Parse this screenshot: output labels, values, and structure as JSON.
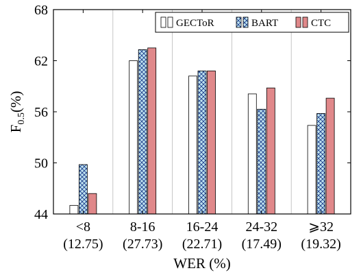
{
  "chart_data": {
    "type": "bar",
    "categories": [
      "<8",
      "8-16",
      "16-24",
      "24-32",
      "⩾32"
    ],
    "category_sublabels": [
      "(12.75)",
      "(27.73)",
      "(22.71)",
      "(17.49)",
      "(19.32)"
    ],
    "series": [
      {
        "name": "GECToR",
        "values": [
          45.0,
          62.0,
          60.2,
          58.1,
          54.4
        ],
        "color": "#ffffff",
        "pattern": "none"
      },
      {
        "name": "BART",
        "values": [
          49.8,
          63.3,
          60.8,
          56.3,
          55.8
        ],
        "color": "#bfe3f0",
        "pattern": "crosshatch"
      },
      {
        "name": "CTC",
        "values": [
          46.4,
          63.5,
          60.8,
          58.8,
          57.6
        ],
        "color": "#e0888a",
        "pattern": "none"
      }
    ],
    "xlabel": "WER (%)",
    "ylabel": "F",
    "ylabel_sub": "0.5",
    "ylabel_unit": "(%)",
    "ylim": [
      44,
      68
    ],
    "yticks": [
      44,
      50,
      56,
      62,
      68
    ],
    "grid": "vertical",
    "legend_position": "top-right"
  }
}
